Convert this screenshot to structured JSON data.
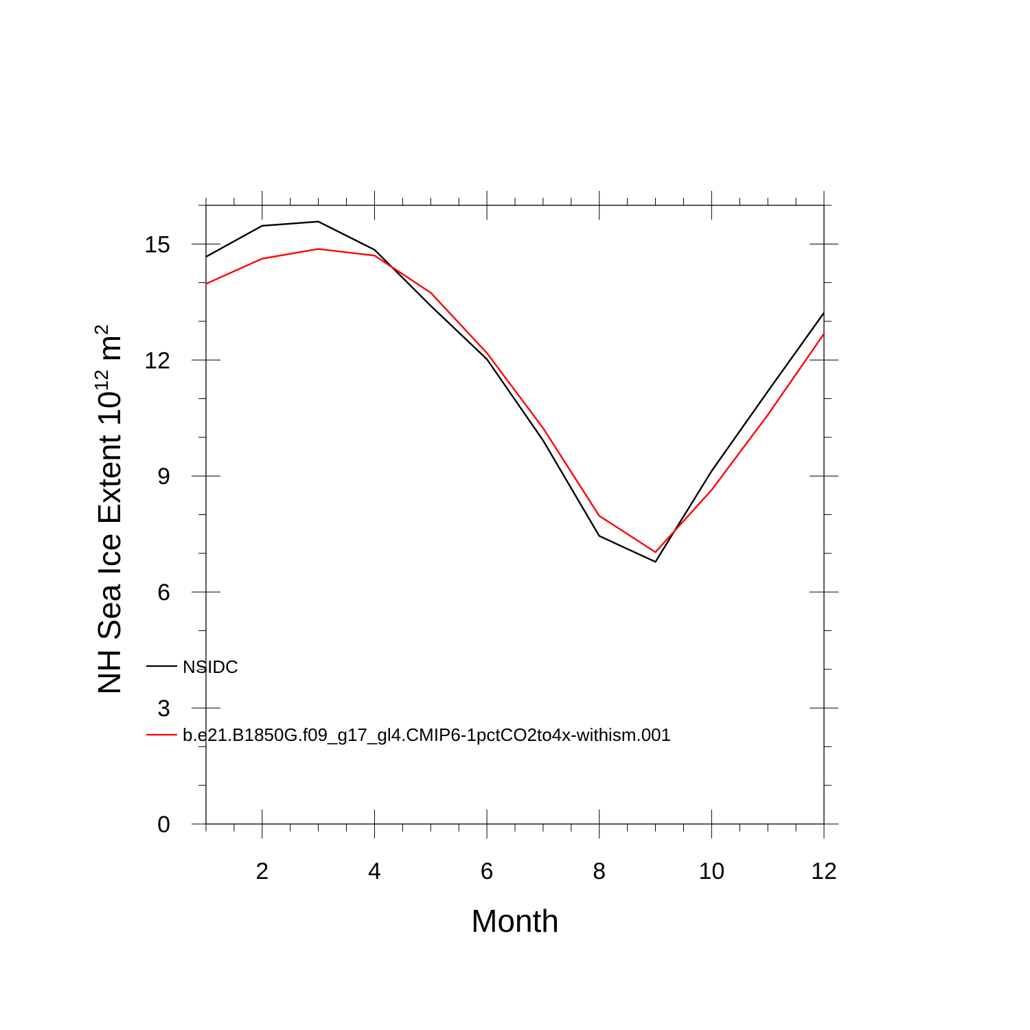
{
  "chart_data": {
    "type": "line",
    "title": "",
    "xlabel": "Month",
    "ylabel": "NH Sea Ice Extent 10",
    "ylabel_exponent": "12",
    "ylabel_unit": "m",
    "ylabel_unit_exponent": "2",
    "xlim": [
      1,
      12
    ],
    "ylim": [
      0,
      16
    ],
    "x_ticks": [
      2,
      4,
      6,
      8,
      10,
      12
    ],
    "y_ticks": [
      0,
      3,
      6,
      9,
      12,
      15
    ],
    "x_tick_labels": [
      "2",
      "4",
      "6",
      "8",
      "10",
      "12"
    ],
    "y_tick_labels": [
      "0",
      "3",
      "6",
      "9",
      "12",
      "15"
    ],
    "grid": false,
    "legend_position": "left",
    "x": [
      1,
      2,
      3,
      4,
      5,
      6,
      7,
      8,
      9,
      10,
      11,
      12
    ],
    "series": [
      {
        "name": "NSIDC",
        "color": "#000000",
        "values": [
          14.67,
          15.47,
          15.58,
          14.85,
          13.4,
          12.02,
          9.92,
          7.45,
          6.78,
          9.13,
          11.19,
          13.22
        ]
      },
      {
        "name": "b.e21.B1850G.f09_g17_gl4.CMIP6-1pctCO2to4x-withism.001",
        "color": "#ff0000",
        "values": [
          13.97,
          14.62,
          14.87,
          14.7,
          13.74,
          12.18,
          10.24,
          7.97,
          7.03,
          8.64,
          10.58,
          12.68
        ]
      }
    ]
  }
}
